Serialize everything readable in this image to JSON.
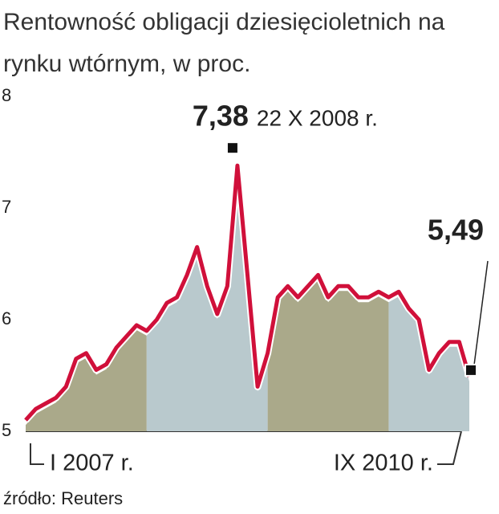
{
  "chart_data": {
    "type": "line",
    "title": "Rentowność obligacji dziesięcioletnich na rynku wtórnym, w proc.",
    "categories": [
      "I 2007 r.",
      null,
      null,
      null,
      null,
      null,
      null,
      null,
      null,
      null,
      null,
      null,
      null,
      null,
      null,
      null,
      null,
      null,
      null,
      null,
      null,
      null,
      null,
      null,
      null,
      null,
      null,
      null,
      null,
      null,
      null,
      null,
      null,
      null,
      null,
      null,
      null,
      null,
      null,
      null,
      null,
      null,
      null,
      null,
      "IX 2010 r."
    ],
    "values": [
      5.1,
      5.2,
      5.25,
      5.3,
      5.4,
      5.65,
      5.7,
      5.55,
      5.6,
      5.75,
      5.85,
      5.95,
      5.9,
      6.0,
      6.15,
      6.2,
      6.4,
      6.65,
      6.3,
      6.05,
      6.3,
      7.38,
      6.4,
      5.4,
      5.7,
      6.2,
      6.3,
      6.2,
      6.3,
      6.4,
      6.2,
      6.3,
      6.3,
      6.2,
      6.2,
      6.25,
      6.2,
      6.25,
      6.1,
      6.0,
      5.55,
      5.7,
      5.8,
      5.8,
      5.49
    ],
    "value_labels": [
      null,
      null,
      null,
      null,
      null,
      null,
      null,
      null,
      null,
      null,
      null,
      null,
      null,
      null,
      null,
      null,
      null,
      null,
      null,
      null,
      null,
      "7,38",
      null,
      null,
      null,
      null,
      null,
      null,
      null,
      null,
      null,
      null,
      null,
      null,
      null,
      null,
      null,
      null,
      null,
      null,
      null,
      null,
      null,
      null,
      "5,49"
    ],
    "annotation": "22 X 2008 r.",
    "color": "#d0103a",
    "band_colors": [
      "#aaa98a",
      "#b9c9cd"
    ],
    "ylim": [
      5,
      8
    ],
    "yticks": [
      5,
      6,
      7,
      8
    ],
    "source": "źródło: Reuters"
  }
}
